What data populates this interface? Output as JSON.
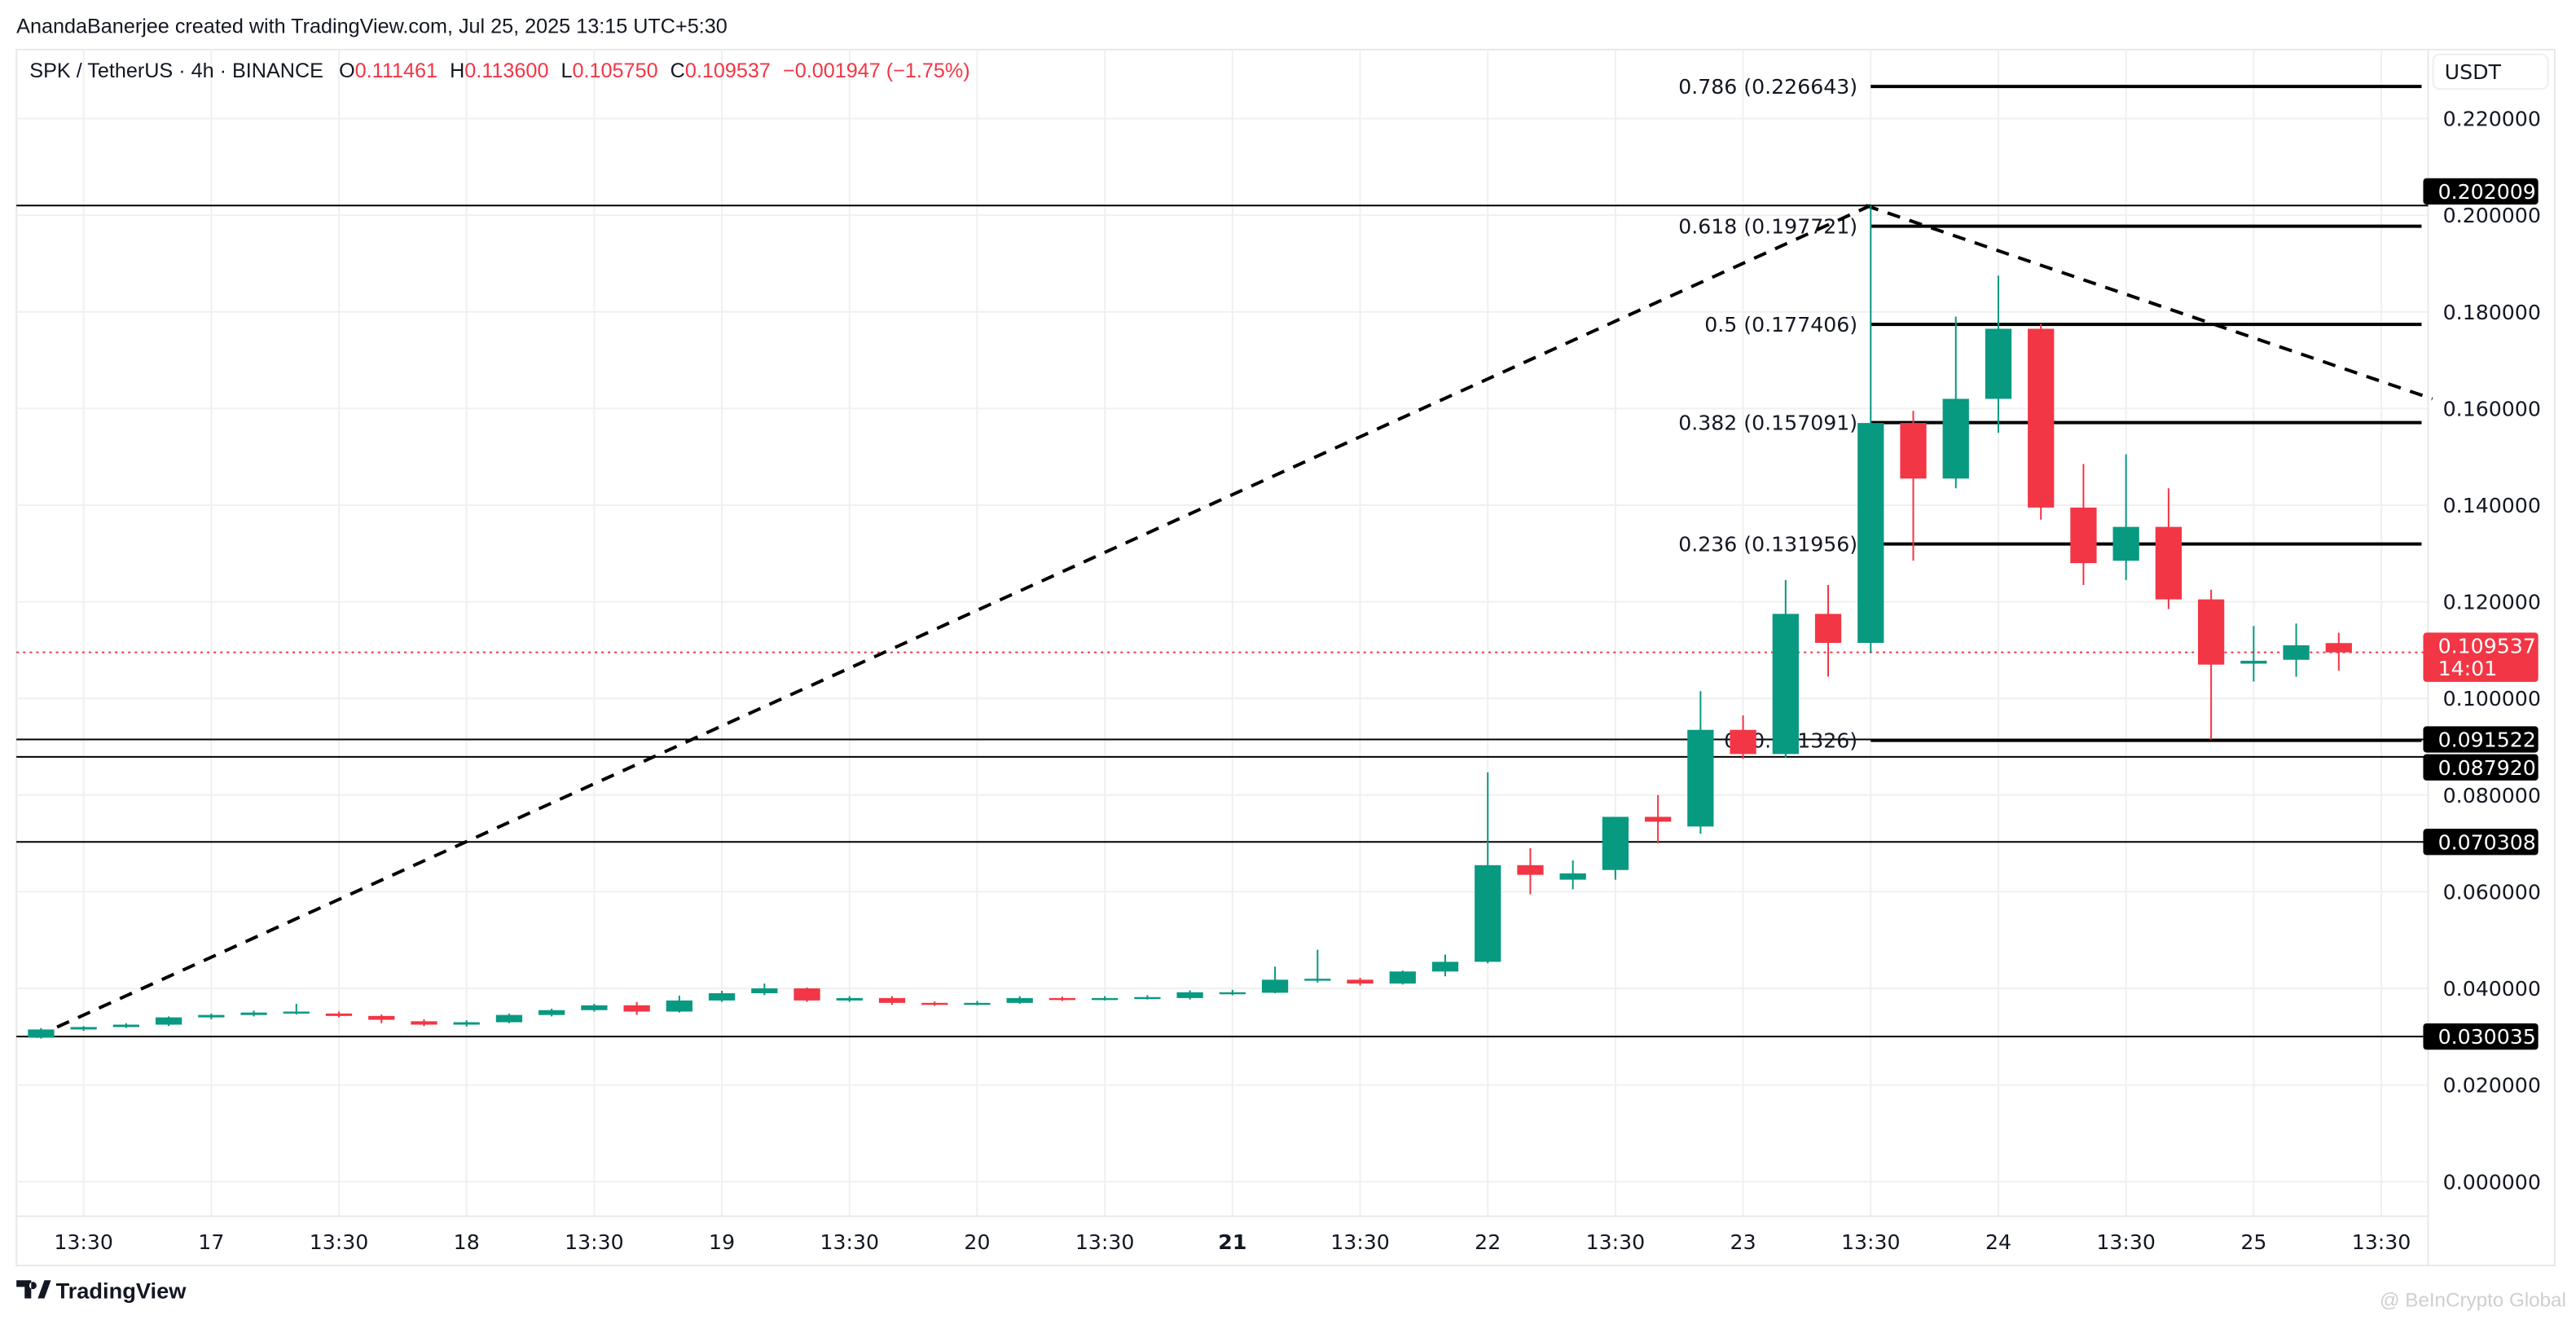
{
  "header": {
    "attribution": "AnandaBanerjee created with TradingView.com, Jul 25, 2025 13:15 UTC+5:30"
  },
  "legend": {
    "symbol": "SPK / TetherUS · 4h · BINANCE",
    "o_label": "O",
    "o_value": "0.111461",
    "h_label": "H",
    "h_value": "0.113600",
    "l_label": "L",
    "l_value": "0.105750",
    "c_label": "C",
    "c_value": "0.109537",
    "change": "−0.001947 (−1.75%)"
  },
  "currency_label": "USDT",
  "colors": {
    "up": "#089981",
    "down": "#f23645",
    "tag_bg": "#000000",
    "grid": "#f0f0f0"
  },
  "footer": {
    "brand": "TradingView",
    "watermark": "@ BeInCrypto Global"
  },
  "last_price_tag": {
    "price": "0.109537",
    "countdown": "14:01"
  },
  "horizontal_levels": [
    {
      "value": 0.202009,
      "label": "0.202009"
    },
    {
      "value": 0.091522,
      "label": "0.091522"
    },
    {
      "value": 0.08792,
      "label": "0.087920"
    },
    {
      "value": 0.070308,
      "label": "0.070308"
    },
    {
      "value": 0.030035,
      "label": "0.030035"
    }
  ],
  "fib_levels": [
    {
      "value": 0.226643,
      "label": "0.786 (0.226643)"
    },
    {
      "value": 0.197721,
      "label": "0.618 (0.197721)"
    },
    {
      "value": 0.177406,
      "label": "0.5 (0.177406)"
    },
    {
      "value": 0.157091,
      "label": "0.382 (0.157091)"
    },
    {
      "value": 0.131956,
      "label": "0.236 (0.131956)"
    },
    {
      "value": 0.091326,
      "label": "0 (0.091326)"
    }
  ],
  "chart_data": {
    "type": "candlestick",
    "title": "SPK / TetherUS · 4h · BINANCE",
    "ylim": [
      -0.009,
      0.232
    ],
    "y_ticks": [
      "0.000000",
      "0.020000",
      "0.040000",
      "0.060000",
      "0.080000",
      "0.100000",
      "0.120000",
      "0.140000",
      "0.160000",
      "0.180000",
      "0.200000",
      "0.220000"
    ],
    "y_tick_values": [
      0,
      0.02,
      0.04,
      0.06,
      0.08,
      0.1,
      0.12,
      0.14,
      0.16,
      0.18,
      0.2,
      0.22
    ],
    "x_ticks": [
      {
        "label": "13:30",
        "candle": 1
      },
      {
        "label": "17",
        "candle": 4
      },
      {
        "label": "13:30",
        "candle": 7
      },
      {
        "label": "18",
        "candle": 10
      },
      {
        "label": "13:30",
        "candle": 13
      },
      {
        "label": "19",
        "candle": 16
      },
      {
        "label": "13:30",
        "candle": 19
      },
      {
        "label": "20",
        "candle": 22
      },
      {
        "label": "13:30",
        "candle": 25
      },
      {
        "label": "21",
        "candle": 28,
        "bold": true
      },
      {
        "label": "13:30",
        "candle": 31
      },
      {
        "label": "22",
        "candle": 34
      },
      {
        "label": "13:30",
        "candle": 37
      },
      {
        "label": "23",
        "candle": 40
      },
      {
        "label": "13:30",
        "candle": 43
      },
      {
        "label": "24",
        "candle": 46
      },
      {
        "label": "13:30",
        "candle": 49
      },
      {
        "label": "25",
        "candle": 52
      },
      {
        "label": "13:30",
        "candle": 55
      }
    ],
    "grid": true,
    "ohlc": [
      [
        0.0298,
        0.0318,
        0.0296,
        0.0315
      ],
      [
        0.0315,
        0.0322,
        0.0312,
        0.032
      ],
      [
        0.032,
        0.0328,
        0.0318,
        0.0325
      ],
      [
        0.0325,
        0.0342,
        0.0322,
        0.034
      ],
      [
        0.034,
        0.0348,
        0.0336,
        0.0345
      ],
      [
        0.0345,
        0.0354,
        0.0342,
        0.035
      ],
      [
        0.035,
        0.0368,
        0.0346,
        0.0352
      ],
      [
        0.0348,
        0.0352,
        0.034,
        0.0343
      ],
      [
        0.0343,
        0.0346,
        0.0328,
        0.0335
      ],
      [
        0.0332,
        0.0336,
        0.0322,
        0.0325
      ],
      [
        0.0325,
        0.0334,
        0.0321,
        0.033
      ],
      [
        0.033,
        0.0348,
        0.0328,
        0.0345
      ],
      [
        0.0345,
        0.0358,
        0.0342,
        0.0355
      ],
      [
        0.0355,
        0.0368,
        0.0352,
        0.0365
      ],
      [
        0.0365,
        0.0372,
        0.0345,
        0.0352
      ],
      [
        0.0352,
        0.0385,
        0.035,
        0.0375
      ],
      [
        0.0375,
        0.0395,
        0.0372,
        0.039
      ],
      [
        0.039,
        0.041,
        0.0386,
        0.04
      ],
      [
        0.04,
        0.0402,
        0.0372,
        0.0375
      ],
      [
        0.0375,
        0.0384,
        0.0372,
        0.038
      ],
      [
        0.038,
        0.0384,
        0.0366,
        0.037
      ],
      [
        0.037,
        0.0373,
        0.0364,
        0.0368
      ],
      [
        0.0368,
        0.0374,
        0.0365,
        0.037
      ],
      [
        0.037,
        0.0384,
        0.0368,
        0.038
      ],
      [
        0.038,
        0.0383,
        0.0374,
        0.0378
      ],
      [
        0.0378,
        0.0384,
        0.0375,
        0.038
      ],
      [
        0.038,
        0.0386,
        0.0377,
        0.0382
      ],
      [
        0.038,
        0.0396,
        0.0377,
        0.0392
      ],
      [
        0.039,
        0.0397,
        0.0386,
        0.0392
      ],
      [
        0.0391,
        0.0445,
        0.039,
        0.0418
      ],
      [
        0.0418,
        0.048,
        0.0412,
        0.042
      ],
      [
        0.0418,
        0.0422,
        0.0406,
        0.041
      ],
      [
        0.041,
        0.0437,
        0.0408,
        0.0435
      ],
      [
        0.0435,
        0.047,
        0.0425,
        0.0455
      ],
      [
        0.0455,
        0.0847,
        0.0452,
        0.0655
      ],
      [
        0.0655,
        0.069,
        0.0595,
        0.0635
      ],
      [
        0.0625,
        0.0665,
        0.0605,
        0.0638
      ],
      [
        0.0645,
        0.0755,
        0.0625,
        0.0755
      ],
      [
        0.0755,
        0.08,
        0.07,
        0.0745
      ],
      [
        0.0735,
        0.1015,
        0.072,
        0.0935
      ],
      [
        0.0935,
        0.0965,
        0.0875,
        0.0885
      ],
      [
        0.0885,
        0.1245,
        0.0878,
        0.1175
      ],
      [
        0.1175,
        0.1235,
        0.1045,
        0.1115
      ],
      [
        0.1115,
        0.202,
        0.1095,
        0.157
      ],
      [
        0.157,
        0.1595,
        0.1285,
        0.1455
      ],
      [
        0.1455,
        0.179,
        0.1435,
        0.162
      ],
      [
        0.162,
        0.1875,
        0.155,
        0.1765
      ],
      [
        0.1765,
        0.1775,
        0.137,
        0.1395
      ],
      [
        0.1395,
        0.1485,
        0.1235,
        0.128
      ],
      [
        0.1285,
        0.1505,
        0.1245,
        0.1355
      ],
      [
        0.1355,
        0.1435,
        0.1185,
        0.1205
      ],
      [
        0.1205,
        0.1225,
        0.0915,
        0.107
      ],
      [
        0.1072,
        0.115,
        0.1035,
        0.1078
      ],
      [
        0.108,
        0.1155,
        0.1045,
        0.111
      ],
      [
        0.111461,
        0.1136,
        0.10575,
        0.109537
      ]
    ],
    "trend_lines": [
      {
        "from": {
          "candle": 0,
          "price": 0.030035
        },
        "to": {
          "candle": 43,
          "price": 0.202009
        },
        "style": "dashed"
      },
      {
        "from": {
          "candle": 43,
          "price": 0.202009
        },
        "to": {
          "candle": 56.2,
          "price": 0.162
        },
        "style": "dashed"
      }
    ]
  }
}
